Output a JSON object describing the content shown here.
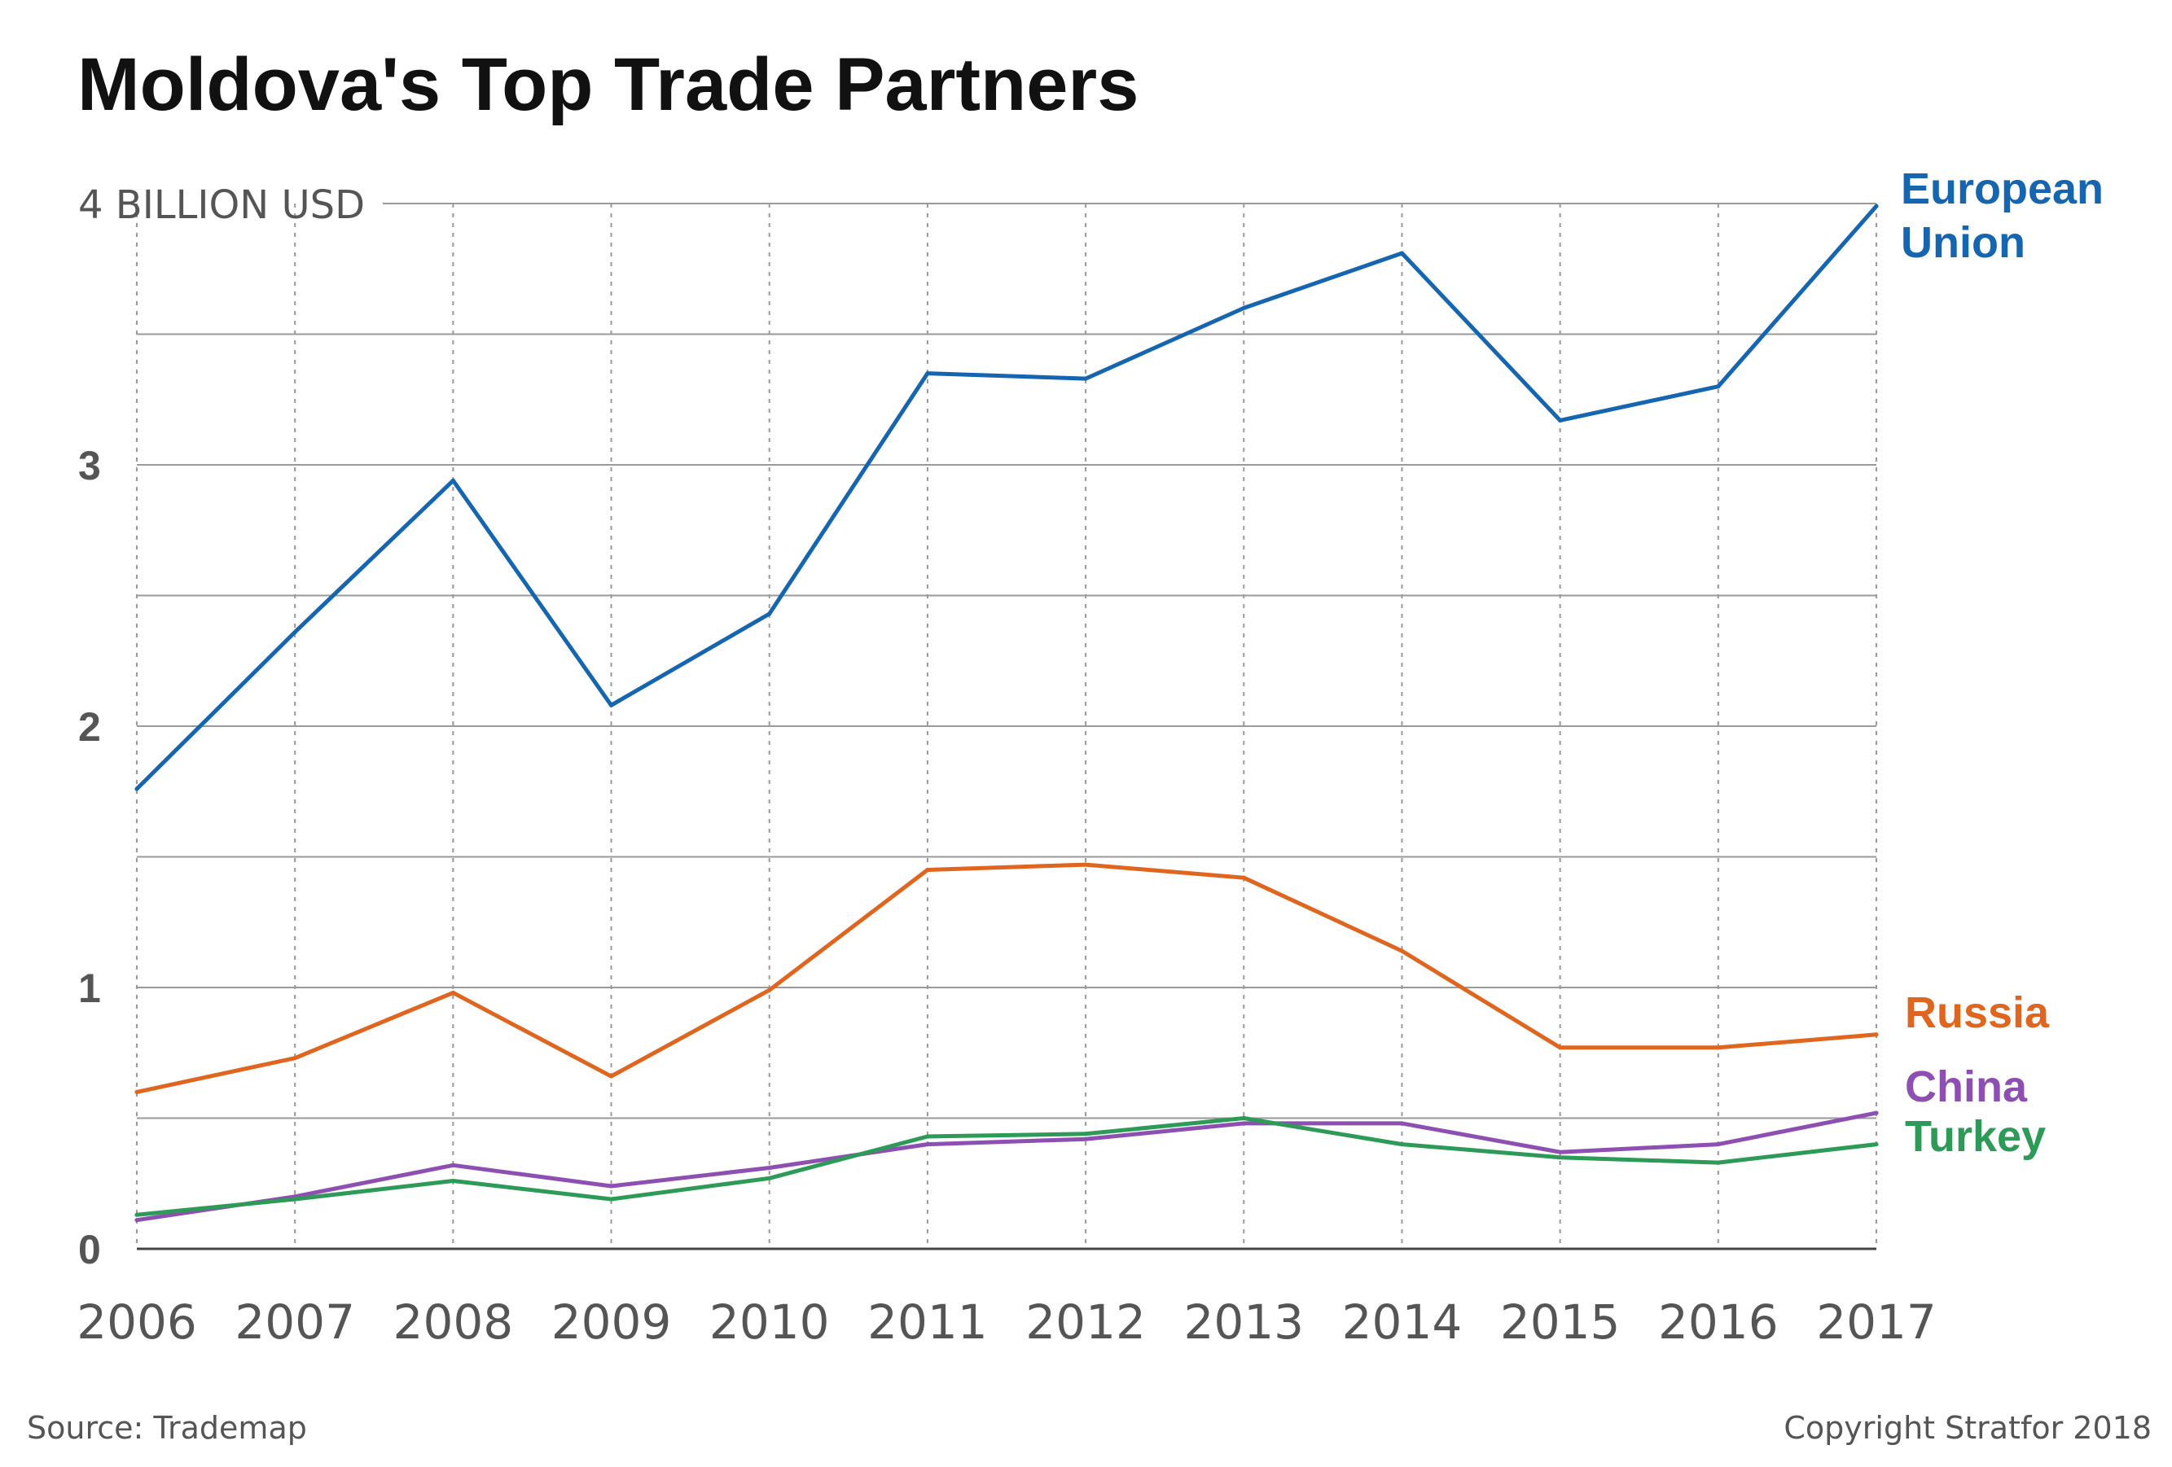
{
  "title": "Moldova's Top Trade Partners",
  "source": "Source: Trademap",
  "copyright": "Copyright Stratfor 2018",
  "chart_data": {
    "type": "line",
    "title": "Moldova's Top Trade Partners",
    "unit_label": "4 BILLION USD",
    "x": [
      "2006",
      "2007",
      "2008",
      "2009",
      "2010",
      "2011",
      "2012",
      "2013",
      "2014",
      "2015",
      "2016",
      "2017"
    ],
    "ylim": [
      0,
      4
    ],
    "y_ticks": [
      {
        "value": 0,
        "label": "0"
      },
      {
        "value": 1,
        "label": "1"
      },
      {
        "value": 2,
        "label": "2"
      },
      {
        "value": 3,
        "label": "3"
      },
      {
        "value": 4,
        "label": "4 BILLION USD"
      }
    ],
    "grid": true,
    "series": [
      {
        "name": "European Union",
        "color": "#1565b0",
        "values": [
          1.76,
          2.36,
          2.94,
          2.08,
          2.43,
          3.35,
          3.33,
          3.6,
          3.81,
          3.17,
          3.3,
          3.99
        ]
      },
      {
        "name": "Russia",
        "color": "#e0651e",
        "values": [
          0.6,
          0.73,
          0.98,
          0.66,
          0.99,
          1.45,
          1.47,
          1.42,
          1.14,
          0.77,
          0.77,
          0.82
        ]
      },
      {
        "name": "China",
        "color": "#8e4fb3",
        "values": [
          0.11,
          0.2,
          0.32,
          0.24,
          0.31,
          0.4,
          0.42,
          0.48,
          0.48,
          0.37,
          0.4,
          0.52
        ]
      },
      {
        "name": "Turkey",
        "color": "#2e9a57",
        "values": [
          0.13,
          0.19,
          0.26,
          0.19,
          0.27,
          0.43,
          0.44,
          0.5,
          0.4,
          0.35,
          0.33,
          0.4
        ]
      }
    ],
    "series_labels": [
      {
        "series": "European Union",
        "lines": [
          "European",
          "Union"
        ]
      },
      {
        "series": "Russia",
        "lines": [
          "Russia"
        ]
      },
      {
        "series": "China",
        "lines": [
          "China"
        ]
      },
      {
        "series": "Turkey",
        "lines": [
          "Turkey"
        ]
      }
    ]
  }
}
